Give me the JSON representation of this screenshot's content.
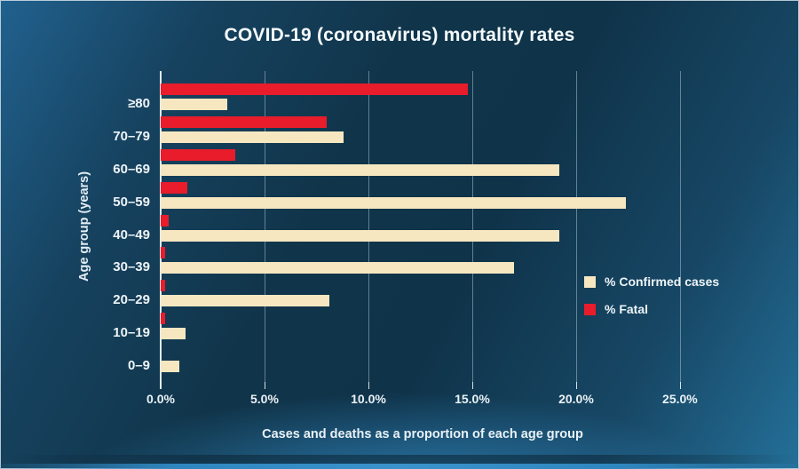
{
  "title": "COVID-19 (coronavirus) mortality rates",
  "chart_data": {
    "type": "bar",
    "orientation": "horizontal",
    "title": "COVID-19 (coronavirus) mortality rates",
    "xlabel": "Cases and deaths as a proportion of each age group",
    "ylabel": "Age group (years)",
    "categories": [
      "≥80",
      "70–79",
      "60–69",
      "50–59",
      "40–49",
      "30–39",
      "20–29",
      "10–19",
      "0–9"
    ],
    "series": [
      {
        "name": "% Confirmed cases",
        "color": "#f6e7c1",
        "values": [
          3.2,
          8.8,
          19.2,
          22.4,
          19.2,
          17.0,
          8.1,
          1.2,
          0.9
        ]
      },
      {
        "name": "% Fatal",
        "color": "#e81c2b",
        "values": [
          14.8,
          8.0,
          3.6,
          1.3,
          0.4,
          0.2,
          0.2,
          0.2,
          0.0
        ]
      }
    ],
    "xlim": [
      0,
      26.5
    ],
    "xticks": [
      0,
      5,
      10,
      15,
      20,
      25
    ],
    "xtick_labels": [
      "0.0%",
      "5.0%",
      "10.0%",
      "15.0%",
      "20.0%",
      "25.0%"
    ],
    "grid": true,
    "legend_position": "right-middle",
    "bar_order_note": "fatal bar drawn above confirmed bar within each age group"
  },
  "colors": {
    "background_center": "#0f3349",
    "background_edge": "#247099",
    "bar_confirmed": "#f6e7c1",
    "bar_fatal": "#e81c2b",
    "text": "#eef4f7",
    "gridline": "#a6c0cd",
    "bottom_accent": "#2f86bf"
  }
}
